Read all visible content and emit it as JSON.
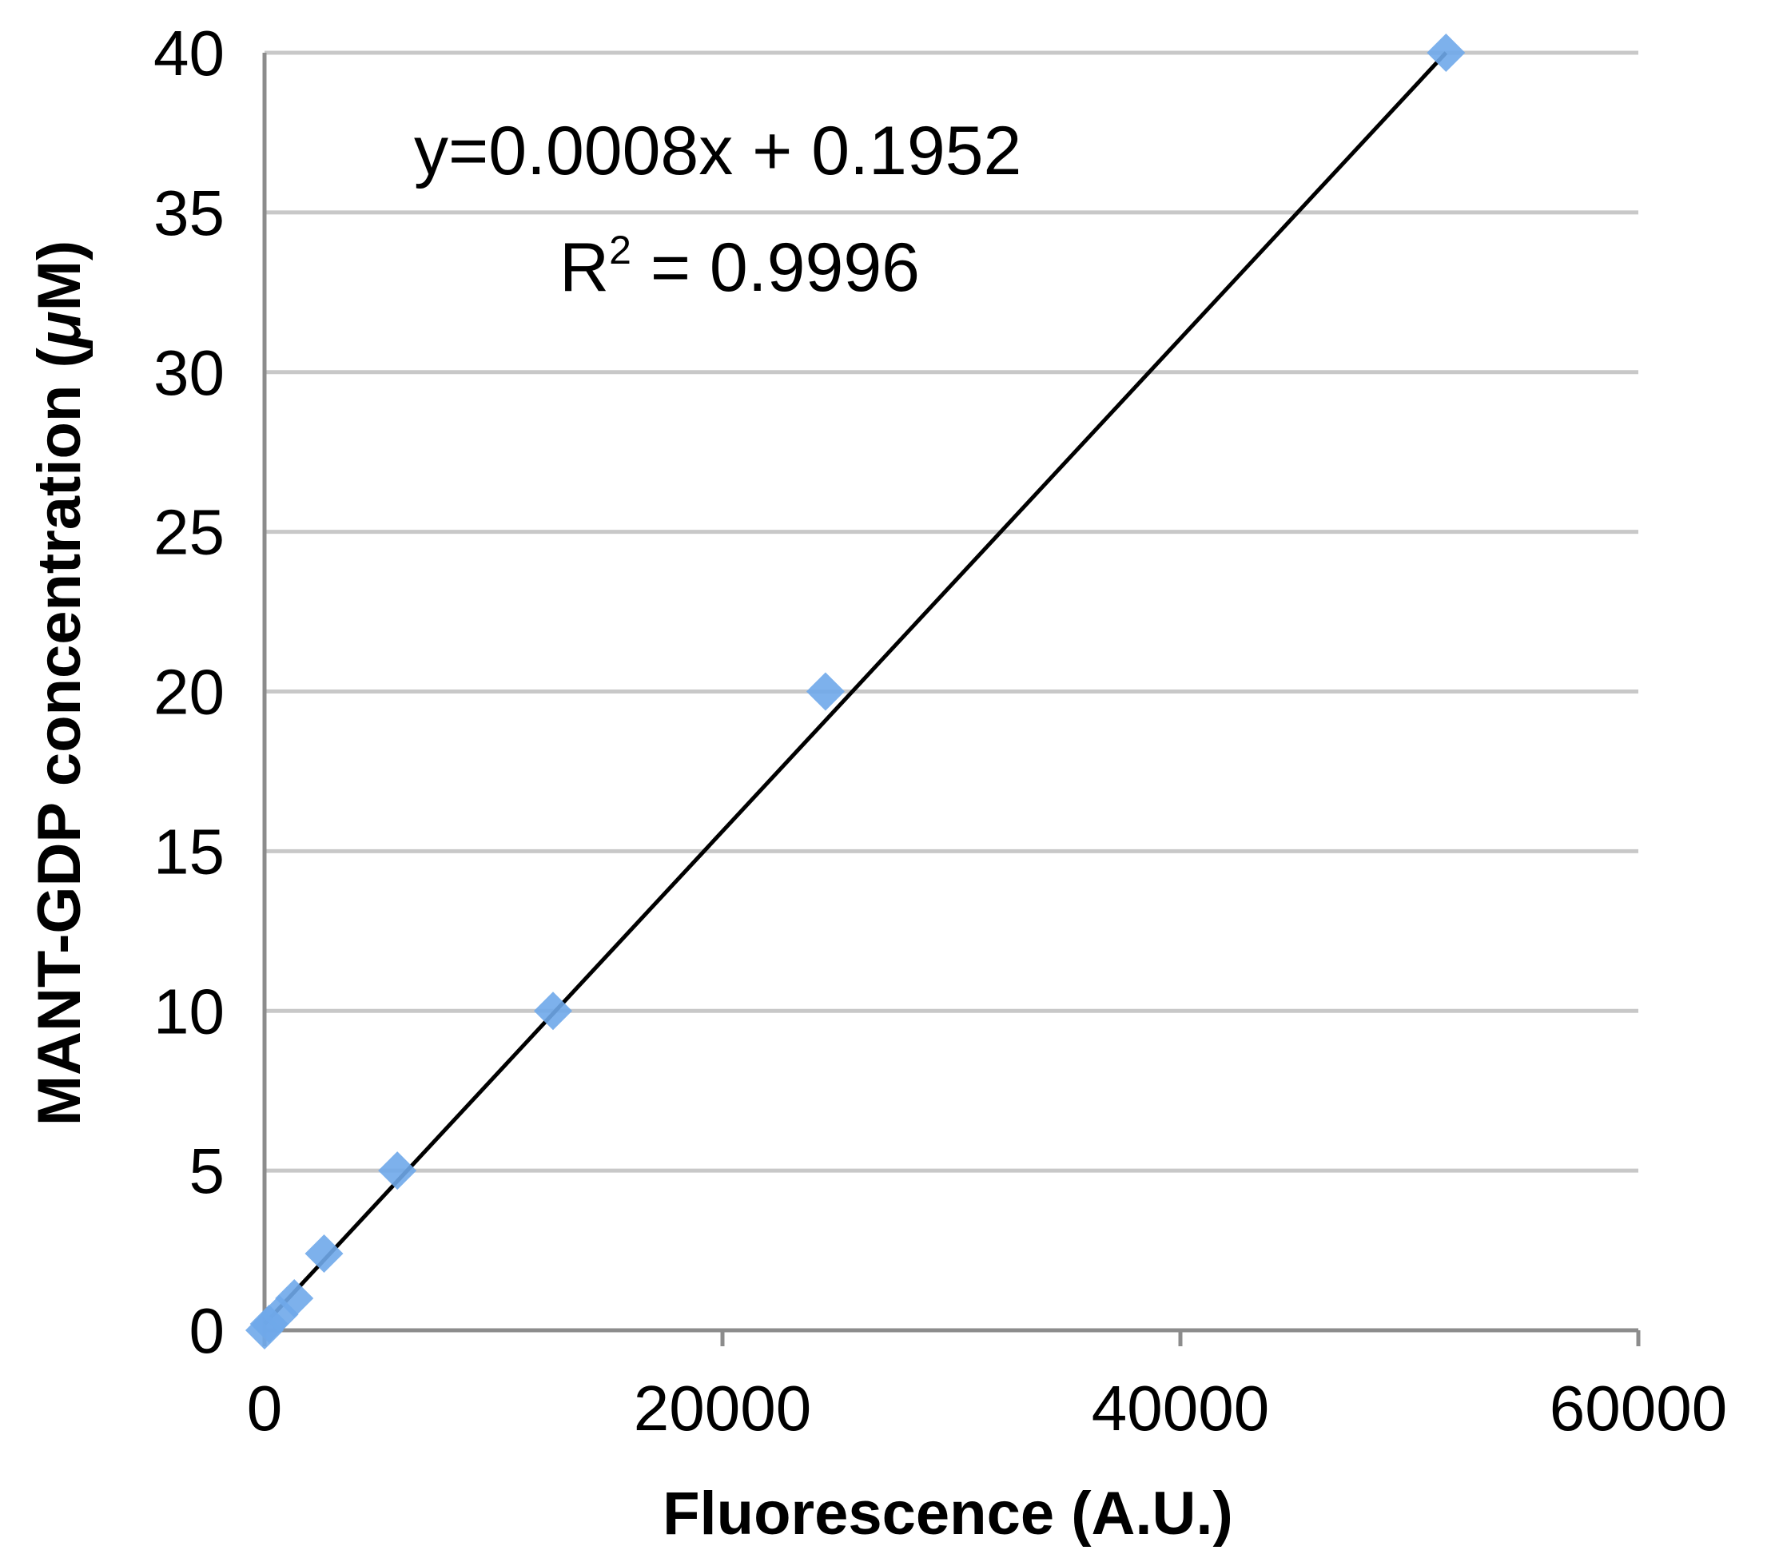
{
  "chart_data": {
    "type": "scatter",
    "title": "",
    "xlabel": "Fluorescence (A.U.)",
    "ylabel_parts": {
      "main": "MANT-GDP concentration (",
      "mu": "μ",
      "unit": "M)"
    },
    "xlim": [
      0,
      60000
    ],
    "ylim": [
      0,
      40
    ],
    "x_ticks": [
      0,
      20000,
      40000,
      60000
    ],
    "x_tick_labels": [
      "0",
      "20000",
      "40000",
      "60000"
    ],
    "y_ticks": [
      0,
      5,
      10,
      15,
      20,
      25,
      30,
      35,
      40
    ],
    "y_tick_labels": [
      "0",
      "5",
      "10",
      "15",
      "20",
      "25",
      "30",
      "35",
      "40"
    ],
    "grid": {
      "horizontal": true,
      "vertical": false
    },
    "series": [
      {
        "marker": "diamond",
        "color": "#6fa8ea",
        "points": [
          {
            "x": 0,
            "y": 0
          },
          {
            "x": 200,
            "y": 0.2
          },
          {
            "x": 650,
            "y": 0.5
          },
          {
            "x": 1300,
            "y": 1
          },
          {
            "x": 2600,
            "y": 2.4
          },
          {
            "x": 5800,
            "y": 5
          },
          {
            "x": 12600,
            "y": 10
          },
          {
            "x": 24500,
            "y": 20
          },
          {
            "x": 51600,
            "y": 40
          }
        ]
      }
    ],
    "trendline": {
      "color": "#000000",
      "x_start": 0,
      "y_start": 0.1952,
      "x_end": 51600,
      "y_end": 40
    },
    "annotations": {
      "equation": "y=0.0008x + 0.1952",
      "r2_label": "R",
      "r2_sup": "2",
      "r2_value": " = 0.9996"
    }
  }
}
